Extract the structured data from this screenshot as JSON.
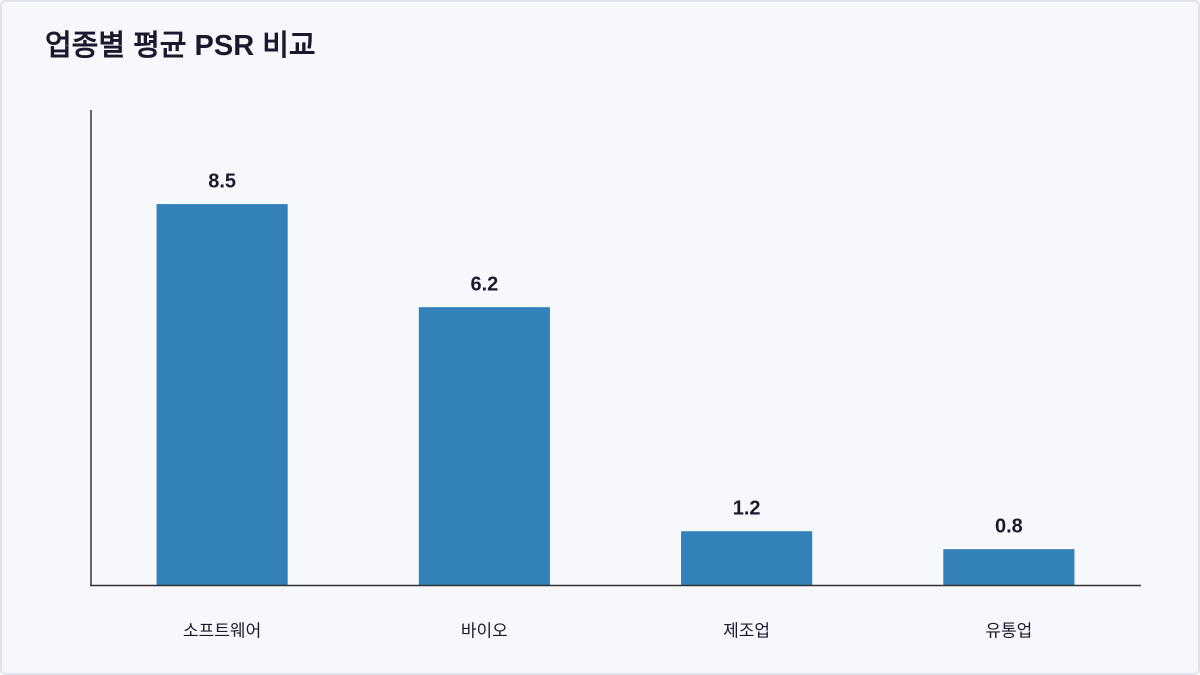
{
  "chart_data": {
    "type": "bar",
    "title": "업종별 평균 PSR 비교",
    "categories": [
      "소프트웨어",
      "바이오",
      "제조업",
      "유통업"
    ],
    "values": [
      8.5,
      6.2,
      1.2,
      0.8
    ],
    "color": "#3281b8",
    "ylim": [
      0,
      10.6
    ]
  }
}
